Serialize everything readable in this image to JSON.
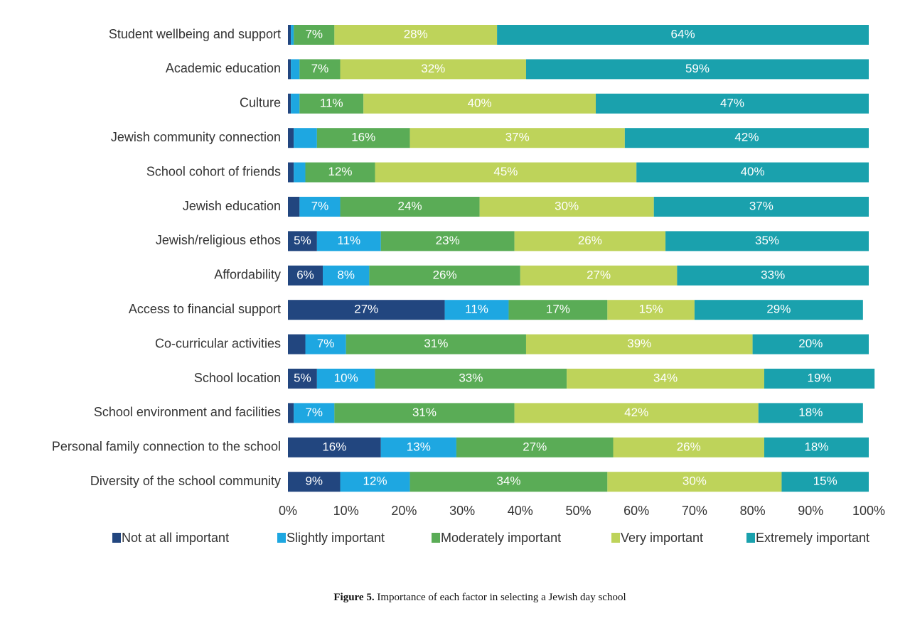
{
  "chart_data": {
    "type": "stacked-bar-horizontal",
    "categories": [
      "Student wellbeing and support",
      "Academic education",
      "Culture",
      "Jewish community connection",
      "School cohort of friends",
      "Jewish education",
      "Jewish/religious ethos",
      "Affordability",
      "Access to financial support",
      "Co-curricular activities",
      "School location",
      "School environment and facilities",
      "Personal family connection to the school",
      "Diversity of the school community"
    ],
    "series": [
      {
        "name": "Not at all important",
        "color": "#22467f",
        "values": [
          0.5,
          0.5,
          0.5,
          1,
          1,
          2,
          5,
          6,
          27,
          3,
          5,
          1,
          16,
          9
        ],
        "value_labels": [
          null,
          null,
          null,
          null,
          null,
          null,
          "5%",
          "6%",
          "27%",
          null,
          "5%",
          null,
          "16%",
          "9%"
        ]
      },
      {
        "name": "Slightly important",
        "color": "#1ea7e1",
        "values": [
          0.5,
          1.5,
          1.5,
          4,
          2,
          7,
          11,
          8,
          11,
          7,
          10,
          7,
          13,
          12
        ],
        "value_labels": [
          null,
          null,
          null,
          null,
          null,
          "7%",
          "11%",
          "8%",
          "11%",
          "7%",
          "10%",
          "7%",
          "13%",
          "12%"
        ]
      },
      {
        "name": "Moderately important",
        "color": "#5aac56",
        "values": [
          7,
          7,
          11,
          16,
          12,
          24,
          23,
          26,
          17,
          31,
          33,
          31,
          27,
          34
        ],
        "value_labels": [
          "7%",
          "7%",
          "11%",
          "16%",
          "12%",
          "24%",
          "23%",
          "26%",
          "17%",
          "31%",
          "33%",
          "31%",
          "27%",
          "34%"
        ]
      },
      {
        "name": "Very important",
        "color": "#bed35a",
        "values": [
          28,
          32,
          40,
          37,
          45,
          30,
          26,
          27,
          15,
          39,
          34,
          42,
          26,
          30
        ],
        "value_labels": [
          "28%",
          "32%",
          "40%",
          "37%",
          "45%",
          "30%",
          "26%",
          "27%",
          "15%",
          "39%",
          "34%",
          "42%",
          "26%",
          "30%"
        ]
      },
      {
        "name": "Extremely important",
        "color": "#1aa1ad",
        "values": [
          64,
          59,
          47,
          42,
          40,
          37,
          35,
          33,
          29,
          20,
          19,
          18,
          18,
          15
        ],
        "value_labels": [
          "64%",
          "59%",
          "47%",
          "42%",
          "40%",
          "37%",
          "35%",
          "33%",
          "29%",
          "20%",
          "19%",
          "18%",
          "18%",
          "15%"
        ]
      }
    ],
    "xlim": [
      0,
      100
    ],
    "xticks": [
      {
        "value": 0,
        "label": "0%"
      },
      {
        "value": 10,
        "label": "10%"
      },
      {
        "value": 20,
        "label": "20%"
      },
      {
        "value": 30,
        "label": "30%"
      },
      {
        "value": 40,
        "label": "40%"
      },
      {
        "value": 50,
        "label": "50%"
      },
      {
        "value": 60,
        "label": "60%"
      },
      {
        "value": 70,
        "label": "70%"
      },
      {
        "value": 80,
        "label": "80%"
      },
      {
        "value": 90,
        "label": "90%"
      },
      {
        "value": 100,
        "label": "100%"
      }
    ],
    "legend": "bottom",
    "caption_label": "Figure 5.",
    "caption": "Importance of each factor in selecting a Jewish day school"
  }
}
